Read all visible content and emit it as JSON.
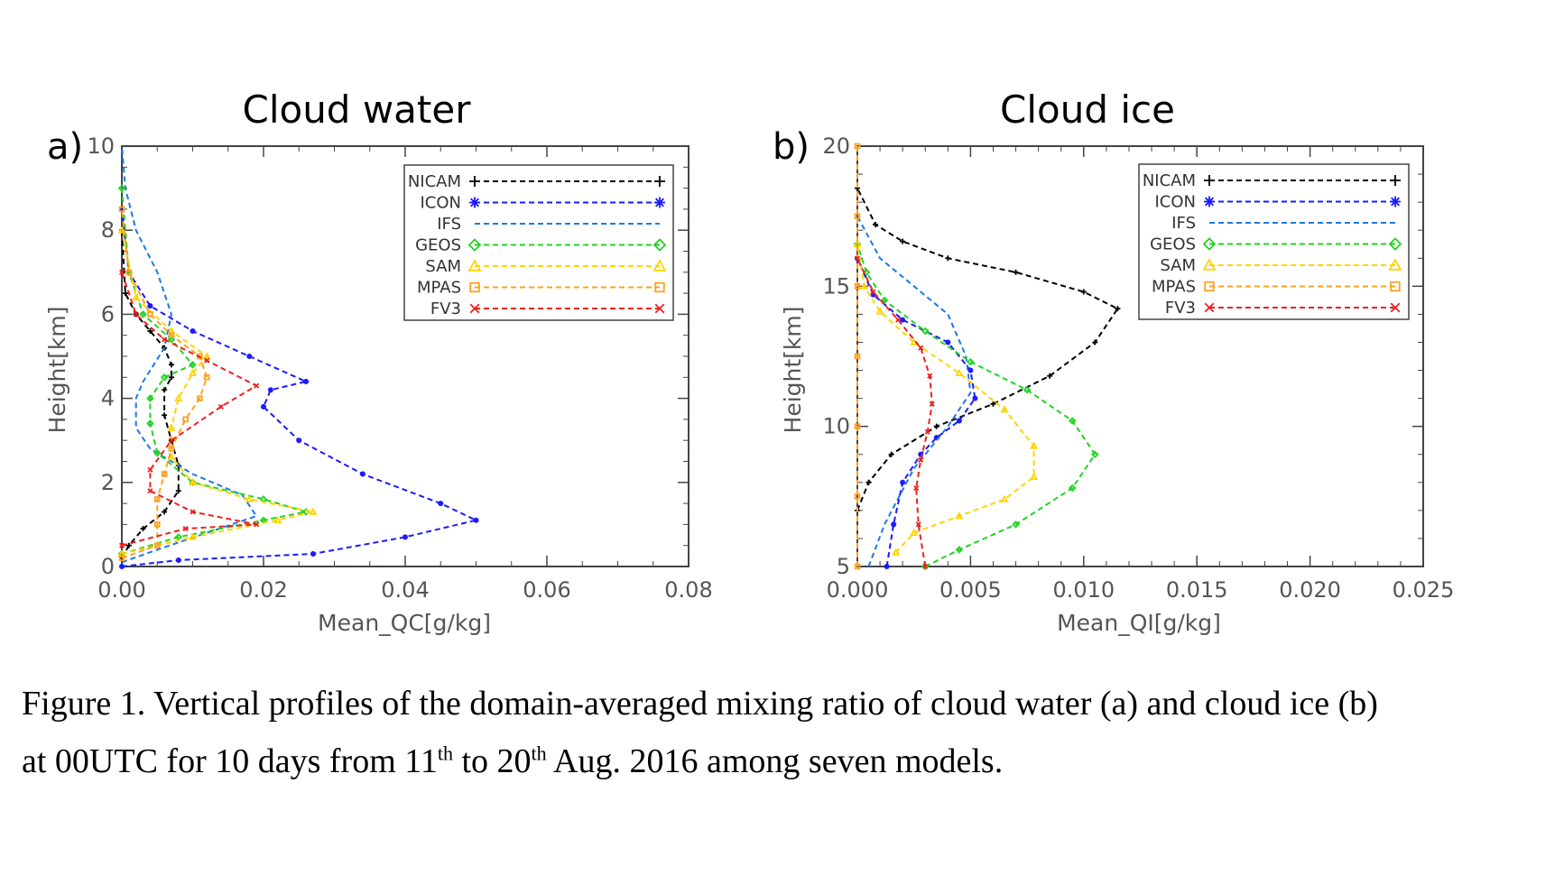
{
  "caption": {
    "line1": "Figure 1. Vertical profiles of the domain-averaged mixing ratio of cloud water (a) and cloud ice (b)",
    "line2_pre": "at 00UTC for 10 days from 11",
    "line2_sup1": "th",
    "line2_mid": " to 20",
    "line2_sup2": "th",
    "line2_post": " Aug. 2016 among seven models."
  },
  "chart_data": [
    {
      "type": "line",
      "panel": "a)",
      "title": "Cloud water",
      "xlabel": "Mean_QC[g/kg]",
      "ylabel": "Height[km]",
      "xlim": [
        0,
        0.08
      ],
      "ylim": [
        0,
        10
      ],
      "xticks": [
        "0.00",
        "0.02",
        "0.04",
        "0.06",
        "0.08"
      ],
      "yticks": [
        "0",
        "2",
        "4",
        "6",
        "8",
        "10"
      ],
      "grid": false,
      "legend_position": "top-right",
      "series": [
        {
          "name": "NICAM",
          "color": "#000000",
          "marker": "plus",
          "x": [
            0.0,
            0.001,
            0.003,
            0.006,
            0.008,
            0.008,
            0.007,
            0.006,
            0.006,
            0.007,
            0.007,
            0.006,
            0.004,
            0.002,
            0.0005,
            0.0
          ],
          "y": [
            0.2,
            0.5,
            0.9,
            1.3,
            1.8,
            2.4,
            3.0,
            3.6,
            4.2,
            4.5,
            4.8,
            5.2,
            5.6,
            6.0,
            6.5,
            8.0
          ]
        },
        {
          "name": "ICON",
          "color": "#1a1aff",
          "marker": "asterisk",
          "x": [
            0.0,
            0.008,
            0.027,
            0.04,
            0.05,
            0.045,
            0.034,
            0.025,
            0.02,
            0.021,
            0.026,
            0.018,
            0.01,
            0.004,
            0.001,
            0.0
          ],
          "y": [
            0.0,
            0.15,
            0.3,
            0.7,
            1.1,
            1.5,
            2.2,
            3.0,
            3.8,
            4.2,
            4.4,
            5.0,
            5.6,
            6.2,
            7.0,
            8.5
          ]
        },
        {
          "name": "IFS",
          "color": "#1e78e6",
          "marker": "none",
          "x": [
            0.0,
            0.005,
            0.012,
            0.019,
            0.017,
            0.01,
            0.004,
            0.002,
            0.002,
            0.003,
            0.006,
            0.007,
            0.005,
            0.002,
            0.0005,
            0.0
          ],
          "y": [
            0.1,
            0.4,
            0.8,
            1.2,
            1.7,
            2.2,
            2.8,
            3.3,
            4.0,
            4.4,
            5.2,
            6.0,
            7.0,
            8.0,
            9.0,
            10.0
          ]
        },
        {
          "name": "GEOS",
          "color": "#22d322",
          "marker": "diamond",
          "x": [
            0.0,
            0.008,
            0.02,
            0.026,
            0.02,
            0.01,
            0.005,
            0.004,
            0.004,
            0.006,
            0.01,
            0.007,
            0.003,
            0.001,
            0.0
          ],
          "y": [
            0.3,
            0.7,
            1.1,
            1.3,
            1.6,
            2.0,
            2.7,
            3.4,
            4.0,
            4.5,
            4.8,
            5.4,
            6.0,
            7.0,
            9.0
          ]
        },
        {
          "name": "SAM",
          "color": "#ffd400",
          "marker": "triangle",
          "x": [
            0.0,
            0.01,
            0.022,
            0.027,
            0.018,
            0.01,
            0.007,
            0.007,
            0.008,
            0.01,
            0.012,
            0.007,
            0.002,
            0.0
          ],
          "y": [
            0.3,
            0.7,
            1.1,
            1.3,
            1.6,
            2.0,
            2.6,
            3.3,
            4.0,
            4.6,
            5.0,
            5.6,
            6.4,
            8.0
          ]
        },
        {
          "name": "MPAS",
          "color": "#ffa020",
          "marker": "square",
          "x": [
            0.0,
            0.005,
            0.005,
            0.005,
            0.006,
            0.007,
            0.009,
            0.011,
            0.012,
            0.011,
            0.007,
            0.004,
            0.001,
            0.0
          ],
          "y": [
            0.2,
            0.5,
            1.0,
            1.6,
            2.2,
            2.8,
            3.5,
            4.0,
            4.5,
            5.0,
            5.5,
            6.0,
            7.0,
            8.5
          ]
        },
        {
          "name": "FV3",
          "color": "#ee2020",
          "marker": "cross",
          "x": [
            0.0,
            0.009,
            0.019,
            0.01,
            0.004,
            0.004,
            0.007,
            0.014,
            0.019,
            0.012,
            0.006,
            0.002,
            0.0
          ],
          "y": [
            0.5,
            0.9,
            1.0,
            1.3,
            1.8,
            2.3,
            3.0,
            3.8,
            4.3,
            4.9,
            5.4,
            6.0,
            7.0
          ]
        }
      ]
    },
    {
      "type": "line",
      "panel": "b)",
      "title": "Cloud ice",
      "xlabel": "Mean_QI[g/kg]",
      "ylabel": "Height[km]",
      "xlim": [
        0,
        0.025
      ],
      "ylim": [
        5,
        20
      ],
      "xticks": [
        "0.000",
        "0.005",
        "0.010",
        "0.015",
        "0.020",
        "0.025"
      ],
      "yticks": [
        "5",
        "10",
        "15",
        "20"
      ],
      "grid": false,
      "legend_position": "top-right",
      "series": [
        {
          "name": "NICAM",
          "color": "#000000",
          "marker": "plus",
          "x": [
            0.0,
            0.0005,
            0.0015,
            0.0035,
            0.006,
            0.0085,
            0.0105,
            0.0115,
            0.01,
            0.007,
            0.004,
            0.002,
            0.0008,
            0.0
          ],
          "y": [
            7.0,
            8.0,
            9.0,
            10.0,
            10.8,
            11.8,
            13.0,
            14.2,
            14.8,
            15.5,
            16.0,
            16.6,
            17.2,
            18.5
          ]
        },
        {
          "name": "ICON",
          "color": "#1a1aff",
          "marker": "asterisk",
          "x": [
            0.0013,
            0.0016,
            0.002,
            0.0028,
            0.0035,
            0.0045,
            0.0052,
            0.005,
            0.004,
            0.002,
            0.0007,
            0.0
          ],
          "y": [
            5.0,
            6.5,
            8.0,
            9.0,
            9.6,
            10.2,
            11.0,
            12.0,
            13.0,
            13.8,
            14.7,
            16.0
          ]
        },
        {
          "name": "IFS",
          "color": "#1e78e6",
          "marker": "none",
          "x": [
            0.0005,
            0.0012,
            0.0025,
            0.004,
            0.005,
            0.0048,
            0.004,
            0.0025,
            0.001,
            0.0
          ],
          "y": [
            5.0,
            6.5,
            8.5,
            10.0,
            11.2,
            12.5,
            14.0,
            15.0,
            16.0,
            17.5
          ]
        },
        {
          "name": "GEOS",
          "color": "#22d322",
          "marker": "diamond",
          "x": [
            0.003,
            0.0045,
            0.007,
            0.0095,
            0.0105,
            0.0095,
            0.0075,
            0.005,
            0.003,
            0.0012,
            0.0004,
            0.0
          ],
          "y": [
            5.0,
            5.6,
            6.5,
            7.8,
            9.0,
            10.2,
            11.3,
            12.3,
            13.4,
            14.5,
            15.5,
            16.5
          ]
        },
        {
          "name": "SAM",
          "color": "#ffd400",
          "marker": "triangle",
          "x": [
            0.0017,
            0.0025,
            0.0045,
            0.0065,
            0.0078,
            0.0078,
            0.0065,
            0.0045,
            0.0025,
            0.001,
            0.0003,
            0.0
          ],
          "y": [
            5.5,
            6.2,
            6.8,
            7.4,
            8.2,
            9.3,
            10.6,
            11.9,
            13.0,
            14.1,
            15.0,
            16.5
          ]
        },
        {
          "name": "MPAS",
          "color": "#ffa020",
          "marker": "square",
          "x": [
            0.0,
            0.0,
            0.0,
            0.0,
            0.0,
            0.0,
            0.0
          ],
          "y": [
            5.0,
            7.5,
            10.0,
            12.5,
            15.0,
            17.5,
            20.0
          ]
        },
        {
          "name": "FV3",
          "color": "#ee2020",
          "marker": "cross",
          "x": [
            0.003,
            0.0027,
            0.0026,
            0.0028,
            0.0031,
            0.0033,
            0.0032,
            0.0028,
            0.0018,
            0.0007,
            0.0
          ],
          "y": [
            5.0,
            6.5,
            7.8,
            8.8,
            9.8,
            10.8,
            11.8,
            12.8,
            13.8,
            14.8,
            16.0
          ]
        }
      ]
    }
  ]
}
